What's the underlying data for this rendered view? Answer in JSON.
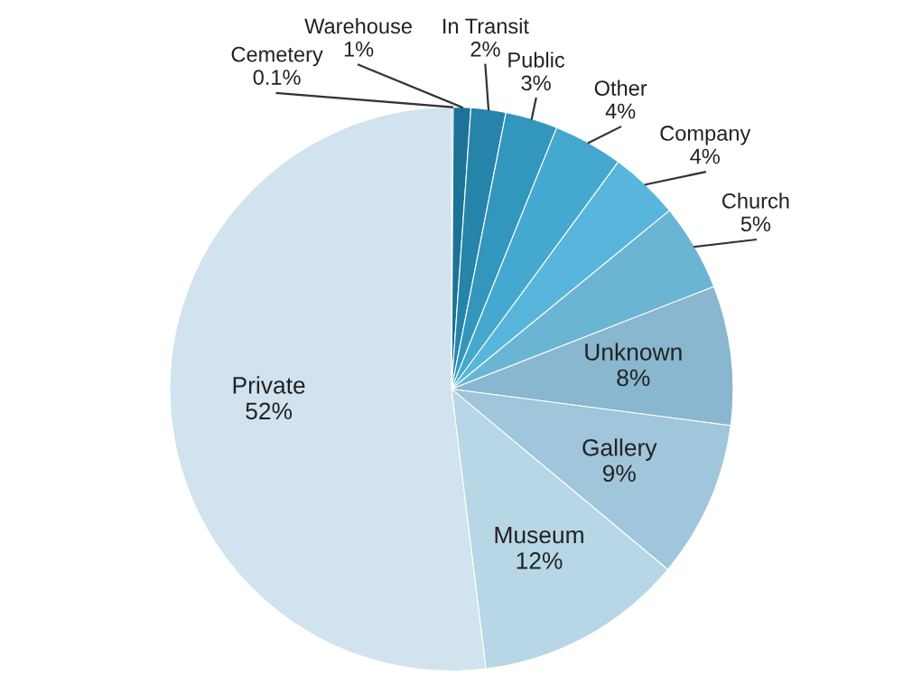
{
  "chart_data": {
    "type": "pie",
    "categories": [
      "Cemetery",
      "Warehouse",
      "In Transit",
      "Public",
      "Other",
      "Company",
      "Church",
      "Unknown",
      "Gallery",
      "Museum",
      "Private"
    ],
    "values": [
      0.1,
      1,
      2,
      3,
      4,
      4,
      5,
      8,
      9,
      12,
      52
    ],
    "value_labels": [
      "0.1%",
      "1%",
      "2%",
      "3%",
      "4%",
      "4%",
      "5%",
      "8%",
      "9%",
      "12%",
      "52%"
    ],
    "colors": [
      "#15607e",
      "#1c7397",
      "#2684aa",
      "#3396bc",
      "#45a8cf",
      "#58b6dc",
      "#6bb5d4",
      "#88b7cf",
      "#9fc6da",
      "#b7d6e6",
      "#d0e3ee"
    ]
  }
}
